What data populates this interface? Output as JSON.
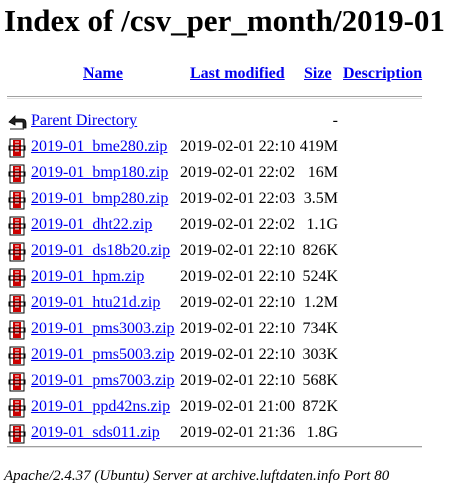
{
  "page": {
    "title": "Index of /csv_per_month/2019-01"
  },
  "headers": {
    "name": "Name",
    "last_modified": "Last modified",
    "size": "Size",
    "description": "Description"
  },
  "parent": {
    "label": "Parent Directory",
    "size": "-",
    "icon": "back-arrow-icon"
  },
  "files": [
    {
      "name": "2019-01_bme280.zip",
      "modified": "2019-02-01 22:10",
      "size": "419M",
      "icon": "compressed-file-icon"
    },
    {
      "name": "2019-01_bmp180.zip",
      "modified": "2019-02-01 22:02",
      "size": "16M",
      "icon": "compressed-file-icon"
    },
    {
      "name": "2019-01_bmp280.zip",
      "modified": "2019-02-01 22:03",
      "size": "3.5M",
      "icon": "compressed-file-icon"
    },
    {
      "name": "2019-01_dht22.zip",
      "modified": "2019-02-01 22:02",
      "size": "1.1G",
      "icon": "compressed-file-icon"
    },
    {
      "name": "2019-01_ds18b20.zip",
      "modified": "2019-02-01 22:10",
      "size": "826K",
      "icon": "compressed-file-icon"
    },
    {
      "name": "2019-01_hpm.zip",
      "modified": "2019-02-01 22:10",
      "size": "524K",
      "icon": "compressed-file-icon"
    },
    {
      "name": "2019-01_htu21d.zip",
      "modified": "2019-02-01 22:10",
      "size": "1.2M",
      "icon": "compressed-file-icon"
    },
    {
      "name": "2019-01_pms3003.zip",
      "modified": "2019-02-01 22:10",
      "size": "734K",
      "icon": "compressed-file-icon"
    },
    {
      "name": "2019-01_pms5003.zip",
      "modified": "2019-02-01 22:10",
      "size": "303K",
      "icon": "compressed-file-icon"
    },
    {
      "name": "2019-01_pms7003.zip",
      "modified": "2019-02-01 22:10",
      "size": "568K",
      "icon": "compressed-file-icon"
    },
    {
      "name": "2019-01_ppd42ns.zip",
      "modified": "2019-02-01 21:00",
      "size": "872K",
      "icon": "compressed-file-icon"
    },
    {
      "name": "2019-01_sds011.zip",
      "modified": "2019-02-01 21:36",
      "size": "1.8G",
      "icon": "compressed-file-icon"
    }
  ],
  "footer": {
    "text": "Apache/2.4.37 (Ubuntu) Server at archive.luftdaten.info Port 80"
  },
  "colors": {
    "link": "#0000ee",
    "icon_red": "#cc0000",
    "rule": "#a0a0a0"
  }
}
